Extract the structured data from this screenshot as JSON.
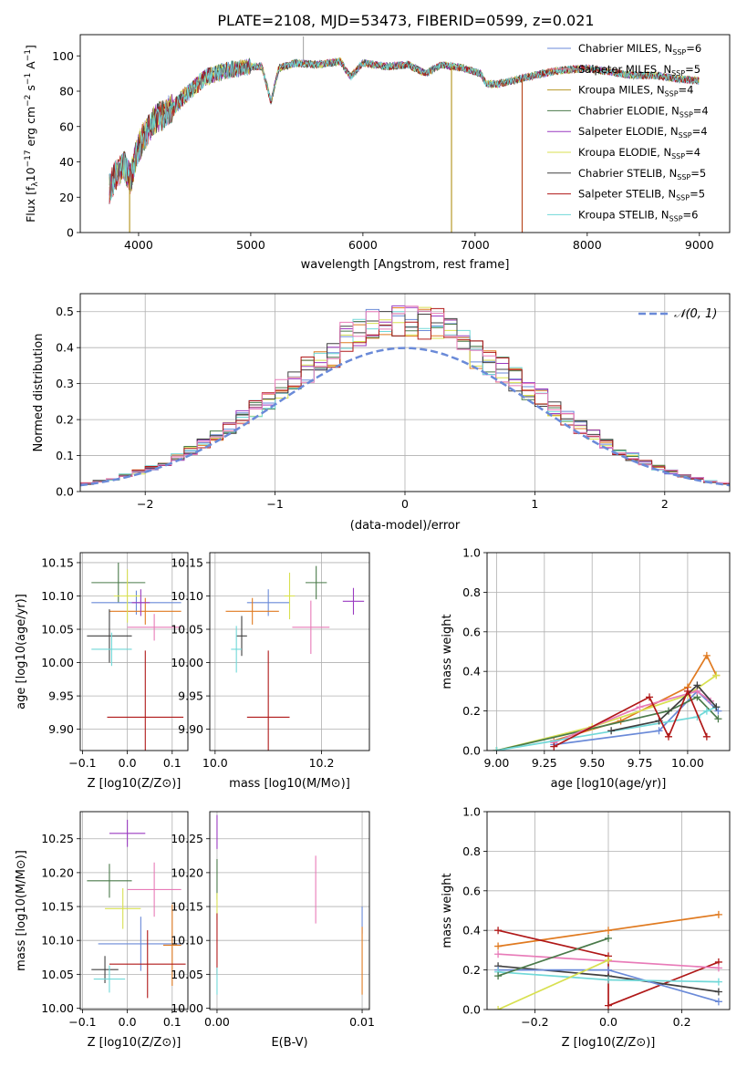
{
  "figure": {
    "title": "PLATE=2108, MJD=53473, FIBERID=0599, z=0.021"
  },
  "chart_data": [
    {
      "id": "spectrum",
      "type": "line",
      "xlabel": "wavelength [Angstrom, rest frame]",
      "ylabel": "Flux [f_λ10^-17 erg cm^-2 s^-1 A^-1]",
      "xlim": [
        3480,
        9270
      ],
      "ylim": [
        0,
        112
      ],
      "xticks": [
        4000,
        5000,
        6000,
        7000,
        8000,
        9000
      ],
      "yticks": [
        0,
        20,
        40,
        60,
        80,
        100
      ],
      "grid": false,
      "legend_position": "top-right",
      "legend": [
        {
          "text": "Chabrier MILES, N",
          "sub": "SSP",
          "tail": "=6",
          "color": "#6a8ad8"
        },
        {
          "text": "Salpeter MILES, N",
          "sub": "SSP",
          "tail": "=5",
          "color": "#e87b8e"
        },
        {
          "text": "Kroupa MILES, N",
          "sub": "SSP",
          "tail": "=4",
          "color": "#b89a2a"
        },
        {
          "text": "Chabrier ELODIE, N",
          "sub": "SSP",
          "tail": "=4",
          "color": "#4a7a4a"
        },
        {
          "text": "Salpeter ELODIE, N",
          "sub": "SSP",
          "tail": "=4",
          "color": "#9a3ac0"
        },
        {
          "text": "Kroupa ELODIE, N",
          "sub": "SSP",
          "tail": "=4",
          "color": "#d8e050"
        },
        {
          "text": "Chabrier STELIB, N",
          "sub": "SSP",
          "tail": "=5",
          "color": "#404040"
        },
        {
          "text": "Salpeter STELIB, N",
          "sub": "SSP",
          "tail": "=5",
          "color": "#b01818"
        },
        {
          "text": "Kroupa STELIB, N",
          "sub": "SSP",
          "tail": "=6",
          "color": "#70d8d8"
        }
      ],
      "spectrum_anchors": {
        "x": [
          3740,
          3800,
          3870,
          3930,
          3980,
          4050,
          4150,
          4300,
          4420,
          4600,
          4800,
          5000,
          5100,
          5180,
          5250,
          5400,
          5600,
          5800,
          5890,
          6000,
          6200,
          6400,
          6560,
          6700,
          6900,
          7050,
          7100,
          7200,
          7400,
          7600,
          7800,
          8000,
          8200,
          8400,
          8600,
          8800,
          9000
        ],
        "y": [
          25,
          33,
          38,
          30,
          45,
          55,
          64,
          70,
          78,
          88,
          92,
          94,
          94,
          74,
          93,
          96,
          95,
          97,
          88,
          96,
          94,
          95,
          90,
          95,
          93,
          90,
          84,
          84,
          87,
          90,
          92,
          93,
          91,
          89,
          89,
          87,
          86
        ]
      },
      "dropouts": [
        {
          "x": 3920,
          "y": 0
        },
        {
          "x": 6790,
          "y": 0
        },
        {
          "x": 7420,
          "y": 0
        }
      ]
    },
    {
      "id": "residuals",
      "type": "line",
      "xlabel": "(data-model)/error",
      "ylabel": "Normed distribution",
      "xlim": [
        -2.5,
        2.5
      ],
      "ylim": [
        0,
        0.55
      ],
      "xticks": [
        -2,
        -1,
        0,
        1,
        2
      ],
      "yticks": [
        0.0,
        0.1,
        0.2,
        0.3,
        0.4,
        0.5
      ],
      "grid": true,
      "legend_position": "top-right",
      "legend": [
        {
          "text": "𝒩(0, 1)",
          "color": "#6a8ad8"
        }
      ],
      "bin_width": 0.1
    },
    {
      "id": "age_vs_Z",
      "type": "scatter",
      "xlabel": "Z [log10(Z/Z⊙)]",
      "ylabel": "age [log10(age/yr)]",
      "xlim": [
        -0.105,
        0.135
      ],
      "ylim": [
        9.868,
        10.165
      ],
      "xticks": [
        -0.1,
        0.0,
        0.1
      ],
      "yticks": [
        9.9,
        9.95,
        10.0,
        10.05,
        10.1,
        10.15
      ],
      "grid": true,
      "points": [
        {
          "x": -0.02,
          "y": 10.12,
          "xerr": 0.06,
          "yerr": 0.03,
          "color": "#4a7a4a"
        },
        {
          "x": 0.02,
          "y": 10.09,
          "xerr": 0.1,
          "yerr": 0.018,
          "color": "#6a8ad8"
        },
        {
          "x": 0.04,
          "y": 10.077,
          "xerr": 0.08,
          "yerr": 0.02,
          "color": "#e07a20"
        },
        {
          "x": 0.06,
          "y": 10.053,
          "xerr": 0.06,
          "yerr": 0.02,
          "color": "#e87bb8"
        },
        {
          "x": -0.04,
          "y": 10.04,
          "xerr": 0.05,
          "yerr": 0.04,
          "color": "#404040"
        },
        {
          "x": -0.035,
          "y": 10.02,
          "xerr": 0.045,
          "yerr": 0.025,
          "color": "#70d8d8"
        },
        {
          "x": 0.04,
          "y": 9.918,
          "xerr": 0.085,
          "yerr": 0.1,
          "color": "#b01818"
        },
        {
          "x": 0.0,
          "y": 10.1,
          "xerr": 0.03,
          "yerr": 0.04,
          "color": "#d8e050"
        },
        {
          "x": 0.03,
          "y": 10.09,
          "xerr": 0.02,
          "yerr": 0.02,
          "color": "#9a3ac0"
        }
      ]
    },
    {
      "id": "age_vs_mass",
      "type": "scatter",
      "xlabel": "mass [log10(M/M⊙)]",
      "ylabel": "",
      "xlim": [
        9.99,
        10.29
      ],
      "ylim": [
        9.868,
        10.165
      ],
      "xticks": [
        10.0,
        10.2
      ],
      "yticks": [
        9.9,
        9.95,
        10.0,
        10.05,
        10.1,
        10.15
      ],
      "grid": true,
      "points": [
        {
          "x": 10.19,
          "y": 10.12,
          "xerr": 0.02,
          "yerr": 0.025,
          "color": "#4a7a4a"
        },
        {
          "x": 10.1,
          "y": 10.09,
          "xerr": 0.04,
          "yerr": 0.02,
          "color": "#6a8ad8"
        },
        {
          "x": 10.07,
          "y": 10.077,
          "xerr": 0.05,
          "yerr": 0.02,
          "color": "#e07a20"
        },
        {
          "x": 10.18,
          "y": 10.053,
          "xerr": 0.035,
          "yerr": 0.04,
          "color": "#e87bb8"
        },
        {
          "x": 10.05,
          "y": 10.04,
          "xerr": 0.01,
          "yerr": 0.03,
          "color": "#404040"
        },
        {
          "x": 10.04,
          "y": 10.02,
          "xerr": 0.01,
          "yerr": 0.035,
          "color": "#70d8d8"
        },
        {
          "x": 10.1,
          "y": 9.918,
          "xerr": 0.04,
          "yerr": 0.1,
          "color": "#b01818"
        },
        {
          "x": 10.14,
          "y": 10.1,
          "xerr": 0.01,
          "yerr": 0.035,
          "color": "#d8e050"
        },
        {
          "x": 10.26,
          "y": 10.092,
          "xerr": 0.02,
          "yerr": 0.02,
          "color": "#9a3ac0"
        }
      ]
    },
    {
      "id": "weight_vs_age",
      "type": "line",
      "xlabel": "age [log10(age/yr)]",
      "ylabel": "mass weight",
      "xlim": [
        8.95,
        10.22
      ],
      "ylim": [
        0,
        1
      ],
      "xticks": [
        9.0,
        9.25,
        9.5,
        9.75,
        10.0
      ],
      "xticklabels": [
        "9.00",
        "9.25",
        "9.50",
        "9.75",
        "10.00"
      ],
      "yticks": [
        0.0,
        0.2,
        0.4,
        0.6,
        0.8,
        1.0
      ],
      "grid": true,
      "series": [
        {
          "color": "#6a8ad8",
          "x": [
            9.3,
            9.85,
            10.05,
            10.16
          ],
          "y": [
            0.03,
            0.1,
            0.3,
            0.2
          ]
        },
        {
          "color": "#e07a20",
          "x": [
            9.3,
            9.65,
            10.0,
            10.1,
            10.15
          ],
          "y": [
            0.05,
            0.15,
            0.32,
            0.48,
            0.38
          ]
        },
        {
          "color": "#d8e050",
          "x": [
            9.0,
            9.5,
            10.0,
            10.15
          ],
          "y": [
            0.0,
            0.12,
            0.28,
            0.38
          ]
        },
        {
          "color": "#4a7a4a",
          "x": [
            9.0,
            9.9,
            10.05,
            10.16
          ],
          "y": [
            0.0,
            0.2,
            0.27,
            0.16
          ]
        },
        {
          "color": "#e87bb8",
          "x": [
            9.3,
            9.75,
            10.05,
            10.12
          ],
          "y": [
            0.04,
            0.22,
            0.3,
            0.25
          ]
        },
        {
          "color": "#70d8d8",
          "x": [
            9.0,
            10.05,
            10.1,
            10.15
          ],
          "y": [
            0.0,
            0.17,
            0.2,
            0.22
          ]
        },
        {
          "color": "#404040",
          "x": [
            9.6,
            9.85,
            10.05,
            10.15
          ],
          "y": [
            0.1,
            0.15,
            0.33,
            0.22
          ]
        },
        {
          "color": "#b01818",
          "x": [
            9.3,
            9.8,
            9.9,
            10.0,
            10.1
          ],
          "y": [
            0.02,
            0.27,
            0.07,
            0.3,
            0.07
          ]
        }
      ]
    },
    {
      "id": "mass_vs_Z",
      "type": "scatter",
      "xlabel": "Z [log10(Z/Z⊙)]",
      "ylabel": "mass [log10(M/M⊙)]",
      "xlim": [
        -0.105,
        0.135
      ],
      "ylim": [
        9.998,
        10.29
      ],
      "xticks": [
        -0.1,
        0.0,
        0.1
      ],
      "yticks": [
        10.0,
        10.05,
        10.1,
        10.15,
        10.2,
        10.25
      ],
      "yticklabels": [
        "10.00",
        "10.05",
        "10.10",
        "10.15",
        "10.20",
        "10.25"
      ],
      "grid": true,
      "points": [
        {
          "x": 0.0,
          "y": 10.258,
          "xerr": 0.04,
          "yerr": 0.02,
          "color": "#9a3ac0"
        },
        {
          "x": -0.04,
          "y": 10.188,
          "xerr": 0.05,
          "yerr": 0.025,
          "color": "#4a7a4a"
        },
        {
          "x": 0.06,
          "y": 10.175,
          "xerr": 0.06,
          "yerr": 0.04,
          "color": "#e87bb8"
        },
        {
          "x": -0.01,
          "y": 10.147,
          "xerr": 0.04,
          "yerr": 0.03,
          "color": "#d8e050"
        },
        {
          "x": 0.03,
          "y": 10.095,
          "xerr": 0.095,
          "yerr": 0.04,
          "color": "#6a8ad8"
        },
        {
          "x": 0.1,
          "y": 10.093,
          "xerr": 0.02,
          "yerr": 0.06,
          "color": "#e07a20"
        },
        {
          "x": 0.045,
          "y": 10.065,
          "xerr": 0.085,
          "yerr": 0.05,
          "color": "#b01818"
        },
        {
          "x": -0.05,
          "y": 10.057,
          "xerr": 0.03,
          "yerr": 0.02,
          "color": "#404040"
        },
        {
          "x": -0.04,
          "y": 10.043,
          "xerr": 0.035,
          "yerr": 0.02,
          "color": "#70d8d8"
        }
      ]
    },
    {
      "id": "mass_vs_EBV",
      "type": "scatter",
      "xlabel": "E(B-V)",
      "ylabel": "",
      "xlim": [
        -0.0005,
        0.0105
      ],
      "ylim": [
        9.998,
        10.29
      ],
      "xticks": [
        0.0,
        0.01
      ],
      "xticklabels": [
        "0.00",
        "0.01"
      ],
      "yticks": [
        10.0,
        10.05,
        10.1,
        10.15,
        10.2,
        10.25
      ],
      "yticklabels": [
        "10.00",
        "10.05",
        "10.10",
        "10.15",
        "10.20",
        "10.25"
      ],
      "grid": true,
      "points": [
        {
          "x": 0.0,
          "y": 10.26,
          "yerr": 0.025,
          "color": "#9a3ac0"
        },
        {
          "x": 0.0,
          "y": 10.19,
          "yerr": 0.03,
          "color": "#4a7a4a"
        },
        {
          "x": 0.0068,
          "y": 10.175,
          "yerr": 0.05,
          "color": "#e87bb8"
        },
        {
          "x": 0.0,
          "y": 10.15,
          "yerr": 0.02,
          "color": "#d8e050"
        },
        {
          "x": 0.01,
          "y": 10.13,
          "yerr": 0.02,
          "color": "#6a8ad8"
        },
        {
          "x": 0.01,
          "y": 10.07,
          "yerr": 0.05,
          "color": "#e07a20"
        },
        {
          "x": 0.0,
          "y": 10.095,
          "yerr": 0.045,
          "color": "#b01818"
        },
        {
          "x": 0.0,
          "y": 10.04,
          "yerr": 0.02,
          "color": "#70d8d8"
        }
      ]
    },
    {
      "id": "weight_vs_Z",
      "type": "line",
      "xlabel": "Z [log10(Z/Z⊙)]",
      "ylabel": "mass weight",
      "xlim": [
        -0.33,
        0.33
      ],
      "ylim": [
        0,
        1
      ],
      "xticks": [
        -0.2,
        0.0,
        0.2
      ],
      "yticks": [
        0.0,
        0.2,
        0.4,
        0.6,
        0.8,
        1.0
      ],
      "grid": true,
      "series": [
        {
          "color": "#e07a20",
          "x": [
            -0.3,
            0.0,
            0.3
          ],
          "y": [
            0.32,
            0.4,
            0.48
          ]
        },
        {
          "color": "#b01818",
          "x": [
            -0.3,
            0.0,
            0.0,
            0.3
          ],
          "y": [
            0.4,
            0.27,
            0.02,
            0.24
          ]
        },
        {
          "color": "#e87bb8",
          "x": [
            -0.3,
            0.3
          ],
          "y": [
            0.28,
            0.21
          ]
        },
        {
          "color": "#404040",
          "x": [
            -0.3,
            0.0,
            0.3
          ],
          "y": [
            0.22,
            0.17,
            0.09
          ]
        },
        {
          "color": "#6a8ad8",
          "x": [
            -0.3,
            0.0,
            0.3
          ],
          "y": [
            0.2,
            0.2,
            0.04
          ]
        },
        {
          "color": "#70d8d8",
          "x": [
            -0.3,
            0.0,
            0.3
          ],
          "y": [
            0.19,
            0.15,
            0.14
          ]
        },
        {
          "color": "#4a7a4a",
          "x": [
            -0.3,
            0.0
          ],
          "y": [
            0.17,
            0.36
          ]
        },
        {
          "color": "#d8e050",
          "x": [
            -0.3,
            0.0
          ],
          "y": [
            0.0,
            0.25
          ]
        }
      ]
    }
  ]
}
